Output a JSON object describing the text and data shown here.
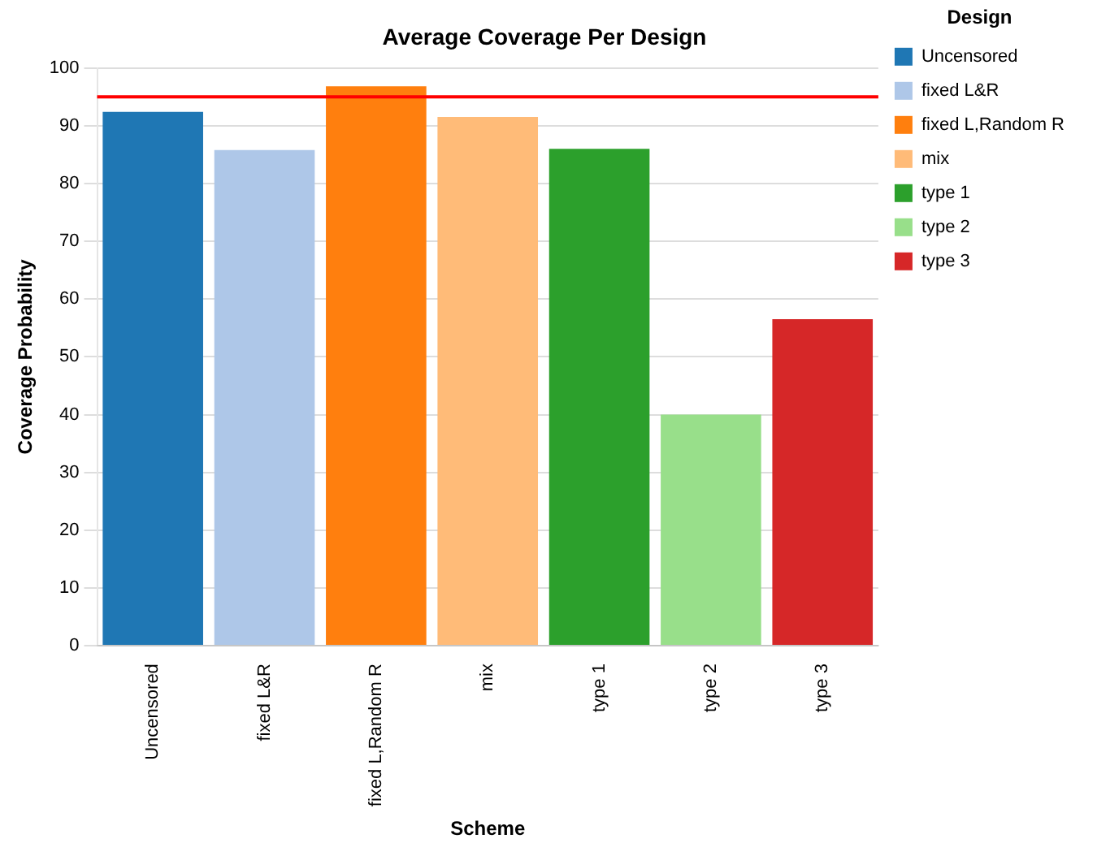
{
  "chart_data": {
    "type": "bar",
    "title": "Average Coverage Per Design",
    "xlabel": "Scheme",
    "ylabel": "Coverage Probability",
    "legend_title": "Design",
    "categories": [
      "Uncensored",
      "fixed L&R",
      "fixed L,Random R",
      "mix",
      "type 1",
      "type 2",
      "type 3"
    ],
    "series": [
      {
        "name": "Uncensored",
        "color": "#1f77b4",
        "values": [
          92.4,
          null,
          null,
          null,
          null,
          null,
          null
        ]
      },
      {
        "name": "fixed L&R",
        "color": "#aec7e8",
        "values": [
          null,
          85.8,
          null,
          null,
          null,
          null,
          null
        ]
      },
      {
        "name": "fixed L,Random R",
        "color": "#ff7f0e",
        "values": [
          null,
          null,
          96.8,
          null,
          null,
          null,
          null
        ]
      },
      {
        "name": "mix",
        "color": "#ffbb78",
        "values": [
          null,
          null,
          null,
          91.5,
          null,
          null,
          null
        ]
      },
      {
        "name": "type 1",
        "color": "#2ca02c",
        "values": [
          null,
          null,
          null,
          null,
          86,
          null,
          null
        ]
      },
      {
        "name": "type 2",
        "color": "#98df8a",
        "values": [
          null,
          null,
          null,
          null,
          null,
          40,
          null
        ]
      },
      {
        "name": "type 3",
        "color": "#d62728",
        "values": [
          null,
          null,
          null,
          null,
          null,
          null,
          56.5
        ]
      }
    ],
    "ylim": [
      0,
      100
    ],
    "yticks": [
      0,
      10,
      20,
      30,
      40,
      50,
      60,
      70,
      80,
      90,
      100
    ],
    "ref_lines": [
      {
        "axis": "y",
        "value": 95,
        "color": "#ff0000"
      }
    ],
    "grid": "y",
    "legend": "right"
  }
}
